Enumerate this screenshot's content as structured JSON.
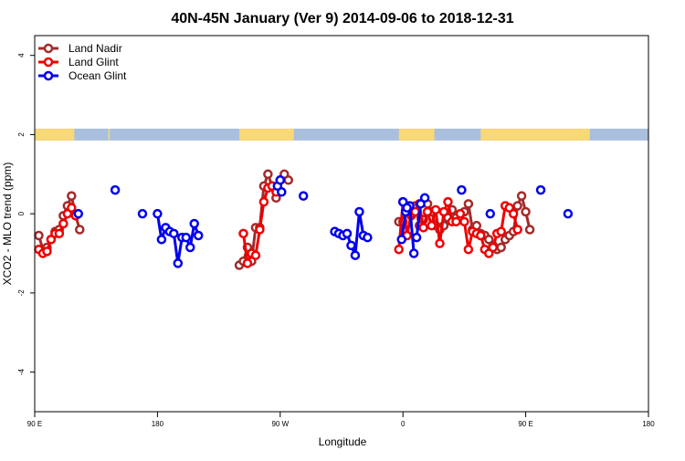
{
  "chart_data": {
    "type": "line",
    "title": "40N-45N January (Ver 9)   2014-09-06 to 2018-12-31",
    "xlabel": "Longitude",
    "ylabel": "XCO2 - MLO trend (ppm)",
    "xlim": [
      90,
      540
    ],
    "ylim": [
      -5,
      4.5
    ],
    "x_ticks": [
      {
        "value": 90,
        "label": "90 E"
      },
      {
        "value": 180,
        "label": "180"
      },
      {
        "value": 270,
        "label": "90 W"
      },
      {
        "value": 360,
        "label": "0"
      },
      {
        "value": 450,
        "label": "90 E"
      },
      {
        "value": 540,
        "label": "180"
      }
    ],
    "y_ticks": [
      -4,
      -2,
      0,
      2,
      4
    ],
    "grid": false,
    "legend_position": "top-left",
    "land_mask_band": {
      "y_range": [
        1.85,
        2.15
      ],
      "ocean_color": "#a9bfdd",
      "land_color": "#f9d877",
      "land_segments": [
        [
          90,
          119
        ],
        [
          144,
          145
        ],
        [
          240,
          280
        ],
        [
          357,
          383
        ],
        [
          417,
          497
        ]
      ]
    },
    "series": [
      {
        "name": "Land Nadir",
        "color": "#a52a2a",
        "segments": [
          [
            [
              93,
              -0.55
            ],
            [
              96,
              -0.9
            ],
            [
              99,
              -0.85
            ],
            [
              102,
              -0.65
            ],
            [
              105,
              -0.45
            ],
            [
              108,
              -0.4
            ],
            [
              111,
              -0.05
            ],
            [
              114,
              0.2
            ],
            [
              117,
              0.45
            ],
            [
              120,
              -0.05
            ],
            [
              123,
              -0.4
            ]
          ],
          [
            [
              240,
              -1.3
            ],
            [
              243,
              -1.2
            ],
            [
              246,
              -0.85
            ],
            [
              249,
              -1.2
            ],
            [
              252,
              -0.35
            ],
            [
              255,
              -0.35
            ],
            [
              258,
              0.7
            ],
            [
              261,
              1.0
            ],
            [
              264,
              0.7
            ],
            [
              267,
              0.4
            ],
            [
              270,
              0.85
            ],
            [
              273,
              1.0
            ],
            [
              276,
              0.85
            ]
          ],
          [
            [
              357,
              -0.2
            ],
            [
              360,
              -0.2
            ],
            [
              363,
              0.15
            ],
            [
              366,
              -0.05
            ],
            [
              369,
              0.2
            ],
            [
              372,
              -0.3
            ],
            [
              375,
              -0.15
            ],
            [
              378,
              0.25
            ],
            [
              381,
              0.05
            ],
            [
              384,
              -0.3
            ],
            [
              387,
              -0.4
            ],
            [
              390,
              -0.3
            ],
            [
              393,
              -0.1
            ],
            [
              396,
              0.1
            ],
            [
              399,
              -0.1
            ],
            [
              402,
              -0.15
            ],
            [
              405,
              0.05
            ],
            [
              408,
              0.25
            ],
            [
              411,
              -0.4
            ],
            [
              414,
              -0.3
            ],
            [
              417,
              -0.5
            ],
            [
              420,
              -0.55
            ],
            [
              423,
              -0.65
            ],
            [
              426,
              -0.8
            ],
            [
              429,
              -0.9
            ],
            [
              432,
              -0.85
            ],
            [
              435,
              -0.65
            ],
            [
              438,
              -0.55
            ],
            [
              441,
              -0.45
            ],
            [
              444,
              0.2
            ],
            [
              447,
              0.45
            ],
            [
              450,
              0.05
            ],
            [
              453,
              -0.4
            ]
          ]
        ]
      },
      {
        "name": "Land Glint",
        "color": "#ee0000",
        "segments": [
          [
            [
              93,
              -0.9
            ],
            [
              96,
              -1.0
            ],
            [
              99,
              -0.95
            ],
            [
              102,
              -0.65
            ],
            [
              105,
              -0.5
            ],
            [
              108,
              -0.5
            ],
            [
              111,
              -0.25
            ],
            [
              114,
              0.0
            ],
            [
              117,
              0.15
            ],
            [
              120,
              -0.05
            ]
          ],
          [
            [
              243,
              -0.5
            ],
            [
              246,
              -1.25
            ],
            [
              249,
              -1.0
            ],
            [
              252,
              -1.05
            ],
            [
              255,
              -0.4
            ],
            [
              258,
              0.3
            ],
            [
              261,
              0.65
            ],
            [
              264,
              0.7
            ],
            [
              267,
              0.55
            ]
          ],
          [
            [
              357,
              -0.9
            ],
            [
              360,
              0.3
            ],
            [
              363,
              -0.55
            ],
            [
              366,
              0.0
            ],
            [
              369,
              0.05
            ],
            [
              372,
              0.25
            ],
            [
              375,
              -0.35
            ],
            [
              378,
              0.05
            ],
            [
              381,
              -0.3
            ],
            [
              384,
              0.1
            ],
            [
              387,
              -0.75
            ],
            [
              390,
              0.05
            ],
            [
              393,
              0.3
            ],
            [
              396,
              -0.2
            ],
            [
              399,
              -0.2
            ],
            [
              402,
              0.0
            ],
            [
              405,
              -0.2
            ],
            [
              408,
              -0.9
            ],
            [
              411,
              -0.45
            ],
            [
              414,
              -0.5
            ],
            [
              417,
              -0.55
            ],
            [
              420,
              -0.9
            ],
            [
              423,
              -1.0
            ],
            [
              426,
              -0.85
            ],
            [
              429,
              -0.5
            ],
            [
              432,
              -0.45
            ],
            [
              435,
              0.2
            ],
            [
              438,
              0.15
            ],
            [
              441,
              0.0
            ],
            [
              444,
              -0.4
            ]
          ]
        ]
      },
      {
        "name": "Ocean Glint",
        "color": "#0000ee",
        "segments": [
          [
            [
              122,
              0.0
            ]
          ],
          [
            [
              149,
              0.6
            ]
          ],
          [
            [
              169,
              0.0
            ]
          ],
          [
            [
              180,
              0.0
            ],
            [
              183,
              -0.65
            ],
            [
              186,
              -0.35
            ],
            [
              189,
              -0.45
            ],
            [
              192,
              -0.5
            ],
            [
              195,
              -1.25
            ],
            [
              198,
              -0.6
            ],
            [
              201,
              -0.6
            ],
            [
              204,
              -0.85
            ],
            [
              207,
              -0.25
            ],
            [
              210,
              -0.55
            ]
          ],
          [
            [
              268,
              0.7
            ],
            [
              271,
              0.55
            ]
          ],
          [
            [
              270,
              0.85
            ]
          ],
          [
            [
              287,
              0.45
            ]
          ],
          [
            [
              310,
              -0.45
            ],
            [
              313,
              -0.5
            ],
            [
              316,
              -0.55
            ],
            [
              319,
              -0.5
            ],
            [
              322,
              -0.8
            ],
            [
              325,
              -1.05
            ],
            [
              328,
              0.05
            ],
            [
              331,
              -0.55
            ],
            [
              334,
              -0.6
            ]
          ],
          [
            [
              359,
              -0.65
            ],
            [
              362,
              0.05
            ],
            [
              365,
              0.2
            ],
            [
              368,
              -1.0
            ]
          ],
          [
            [
              360,
              0.3
            ],
            [
              363,
              0.15
            ]
          ],
          [
            [
              370,
              -0.6
            ],
            [
              373,
              0.25
            ],
            [
              376,
              0.4
            ]
          ],
          [
            [
              403,
              0.6
            ]
          ],
          [
            [
              424,
              0.0
            ]
          ],
          [
            [
              461,
              0.6
            ]
          ],
          [
            [
              481,
              0.0
            ]
          ]
        ]
      }
    ]
  }
}
